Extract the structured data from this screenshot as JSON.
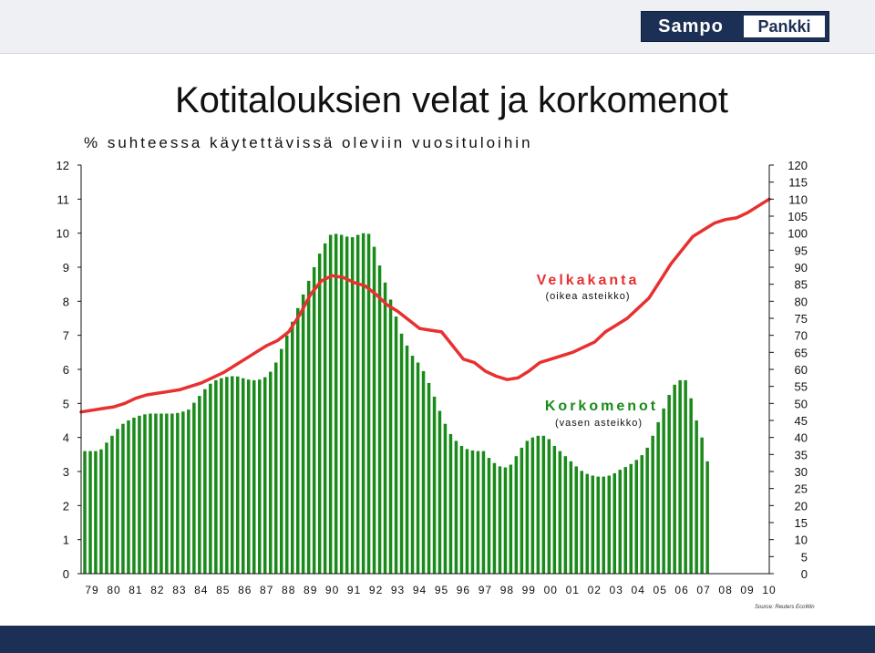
{
  "brand": {
    "part1": "Sampo",
    "part2": "Pankki"
  },
  "header": {
    "title": "Kotitalouksien velat ja korkomenot",
    "subtitle": "% suhteessa käytettävissä oleviin vuosituloihin"
  },
  "source": "Source: Reuters EcoWin",
  "colors": {
    "bars": "#1a8a1a",
    "line": "#e83030",
    "header_band": "#eef0f3",
    "footer_band": "#1c2f54"
  },
  "chart_data": {
    "type": "bar",
    "title": "Kotitalouksien velat ja korkomenot",
    "subtitle": "% suhteessa käytettävissä oleviin vuosituloihin",
    "x_tick_labels": [
      "79",
      "80",
      "81",
      "82",
      "83",
      "84",
      "85",
      "86",
      "87",
      "88",
      "89",
      "90",
      "91",
      "92",
      "93",
      "94",
      "95",
      "96",
      "97",
      "98",
      "99",
      "00",
      "01",
      "02",
      "03",
      "04",
      "05",
      "06",
      "07",
      "08",
      "09",
      "10"
    ],
    "x_range": [
      1979.0,
      2010.5
    ],
    "y_left": {
      "ticks": [
        0,
        1,
        2,
        3,
        4,
        5,
        6,
        7,
        8,
        9,
        10,
        11,
        12
      ],
      "range": [
        0,
        12
      ]
    },
    "y_right": {
      "ticks": [
        0,
        5,
        10,
        15,
        20,
        25,
        30,
        35,
        40,
        45,
        50,
        55,
        60,
        65,
        70,
        75,
        80,
        85,
        90,
        95,
        100,
        105,
        110,
        115,
        120
      ],
      "range": [
        0,
        120
      ]
    },
    "grid": false,
    "series": [
      {
        "name": "Korkomenot",
        "note": "(vasen asteikko)",
        "type": "bar",
        "axis": "left",
        "color": "#1a8a1a",
        "t0": 1979.0,
        "step": 0.25,
        "values": [
          3.6,
          3.6,
          3.6,
          3.65,
          3.85,
          4.05,
          4.25,
          4.4,
          4.5,
          4.58,
          4.64,
          4.68,
          4.7,
          4.7,
          4.7,
          4.7,
          4.7,
          4.72,
          4.76,
          4.82,
          5.02,
          5.22,
          5.42,
          5.58,
          5.68,
          5.74,
          5.78,
          5.8,
          5.79,
          5.74,
          5.7,
          5.68,
          5.7,
          5.77,
          5.93,
          6.2,
          6.6,
          7.0,
          7.4,
          7.8,
          8.2,
          8.6,
          9.0,
          9.4,
          9.7,
          9.95,
          9.98,
          9.95,
          9.9,
          9.88,
          9.95,
          10.0,
          9.98,
          9.6,
          9.05,
          8.55,
          8.05,
          7.55,
          7.05,
          6.7,
          6.4,
          6.2,
          5.95,
          5.6,
          5.2,
          4.78,
          4.4,
          4.1,
          3.9,
          3.75,
          3.66,
          3.62,
          3.6,
          3.6,
          3.4,
          3.25,
          3.15,
          3.12,
          3.2,
          3.45,
          3.7,
          3.9,
          4.0,
          4.05,
          4.05,
          3.95,
          3.75,
          3.6,
          3.45,
          3.3,
          3.15,
          3.02,
          2.93,
          2.88,
          2.85,
          2.85,
          2.88,
          2.95,
          3.05,
          3.13,
          3.22,
          3.34,
          3.48,
          3.7,
          4.05,
          4.45,
          4.85,
          5.25,
          5.55,
          5.68,
          5.68,
          5.15,
          4.5,
          4.0,
          3.3
        ]
      },
      {
        "name": "Velkakanta",
        "note": "(oikea asteikko)",
        "type": "line",
        "axis": "right",
        "color": "#e83030",
        "t0": 1979.0,
        "step": 0.5,
        "values": [
          47.5,
          48,
          48.5,
          49,
          50,
          51.5,
          52.5,
          53,
          53.5,
          54,
          55,
          56,
          57.5,
          59,
          61,
          63,
          65,
          67,
          68.5,
          71,
          76,
          82,
          86,
          87.5,
          87,
          85.5,
          84.5,
          82,
          79,
          77,
          74.5,
          72,
          71.5,
          71,
          67,
          63,
          62,
          59.5,
          58,
          57,
          57.5,
          59.5,
          62,
          63,
          64,
          65,
          66.5,
          68,
          71,
          73,
          75,
          78,
          81,
          86,
          91,
          95,
          99,
          101,
          103,
          104,
          104.5,
          106,
          108,
          110
        ]
      }
    ]
  }
}
